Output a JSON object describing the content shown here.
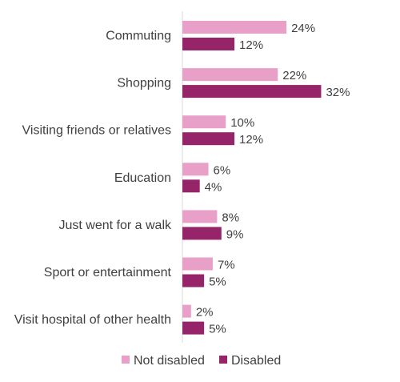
{
  "chart_data": {
    "type": "bar",
    "orientation": "horizontal",
    "categories": [
      "Commuting",
      "Shopping",
      "Visiting friends or relatives",
      "Education",
      "Just went for a walk",
      "Sport or entertainment",
      "Visit hospital of other health"
    ],
    "series": [
      {
        "name": "Not disabled",
        "color": "#e8a0c8",
        "values": [
          24,
          22,
          10,
          6,
          8,
          7,
          2
        ],
        "labels": [
          "24%",
          "22%",
          "10%",
          "6%",
          "8%",
          "7%",
          "2%"
        ]
      },
      {
        "name": "Disabled",
        "color": "#962469",
        "values": [
          12,
          32,
          12,
          4,
          9,
          5,
          5
        ],
        "labels": [
          "12%",
          "32%",
          "12%",
          "4%",
          "9%",
          "5%",
          "5%"
        ]
      }
    ],
    "xlim": [
      0,
      32
    ],
    "grid": false,
    "legend": "bottom-center",
    "value_format": "percent"
  }
}
